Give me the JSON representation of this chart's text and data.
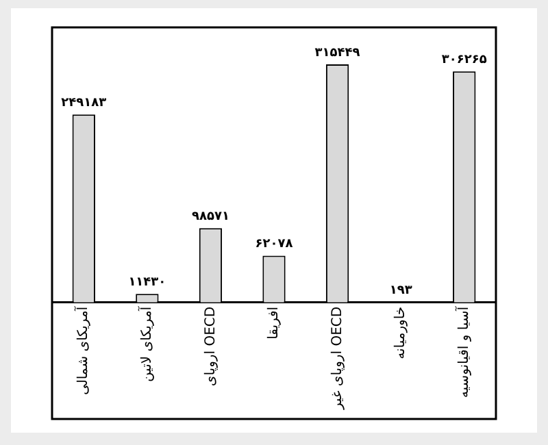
{
  "chart_data": {
    "type": "bar",
    "categories": [
      "آمریکای شمالی",
      "آمریکای لاتین",
      "اروپای OECD",
      "افریقا",
      "اروپای غیر OECD",
      "خاورمیانه",
      "آسیا و اقیانوسیه"
    ],
    "values": [
      249183,
      11430,
      98571,
      62078,
      315449,
      193,
      306265
    ],
    "value_labels": [
      "۲۴۹۱۸۳",
      "۱۱۴۳۰",
      "۹۸۵۷۱",
      "۶۲۰۷۸",
      "۳۱۵۴۴۹",
      "۱۹۳",
      "۳۰۶۲۶۵"
    ],
    "color": "#d9d9d9",
    "grid": false,
    "legend": false
  }
}
